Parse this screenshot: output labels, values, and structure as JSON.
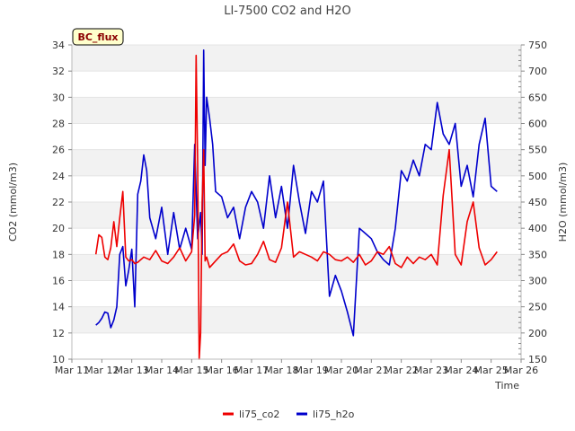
{
  "chart_data": {
    "type": "line",
    "title": "LI-7500 CO2 and H2O",
    "badge": "BC_flux",
    "xlabel": "Time",
    "ylabel": "CO2 (mmol/m3)",
    "ylabel_right": "H2O (mmol/m3)",
    "x_ticks": [
      "Mar 11",
      "Mar 12",
      "Mar 13",
      "Mar 14",
      "Mar 15",
      "Mar 16",
      "Mar 17",
      "Mar 18",
      "Mar 19",
      "Mar 20",
      "Mar 21",
      "Mar 22",
      "Mar 23",
      "Mar 24",
      "Mar 25",
      "Mar 26"
    ],
    "xlim": [
      11,
      26
    ],
    "ylim": [
      10,
      34
    ],
    "ylim_right": [
      150,
      750
    ],
    "y_ticks": [
      10,
      12,
      14,
      16,
      18,
      20,
      22,
      24,
      26,
      28,
      30,
      32,
      34
    ],
    "y_ticks_right": [
      150,
      200,
      250,
      300,
      350,
      400,
      450,
      500,
      550,
      600,
      650,
      700,
      750
    ],
    "grid": "horizontal alternating bands",
    "legend_position": "bottom",
    "colors": {
      "li75_co2": "#ee0000",
      "li75_h2o": "#0000cc",
      "band": "#f2f2f2",
      "badge_bg": "#ffffcc"
    },
    "series": [
      {
        "name": "li75_co2",
        "axis": "left",
        "x": [
          11.8,
          11.9,
          12.0,
          12.1,
          12.2,
          12.3,
          12.4,
          12.5,
          12.6,
          12.7,
          12.8,
          12.9,
          13.0,
          13.1,
          13.2,
          13.4,
          13.6,
          13.8,
          14.0,
          14.2,
          14.4,
          14.6,
          14.8,
          15.0,
          15.1,
          15.15,
          15.2,
          15.25,
          15.3,
          15.35,
          15.4,
          15.45,
          15.5,
          15.6,
          15.8,
          16.0,
          16.2,
          16.4,
          16.6,
          16.8,
          17.0,
          17.2,
          17.4,
          17.6,
          17.8,
          18.0,
          18.2,
          18.4,
          18.6,
          18.8,
          19.0,
          19.2,
          19.4,
          19.6,
          19.8,
          20.0,
          20.2,
          20.4,
          20.6,
          20.8,
          21.0,
          21.2,
          21.4,
          21.6,
          21.8,
          22.0,
          22.2,
          22.4,
          22.6,
          22.8,
          23.0,
          23.2,
          23.4,
          23.6,
          23.8,
          24.0,
          24.2,
          24.4,
          24.6,
          24.8,
          25.0,
          25.2
        ],
        "values": [
          18.0,
          19.5,
          19.3,
          17.8,
          17.6,
          18.5,
          20.5,
          18.6,
          20.8,
          22.8,
          17.8,
          17.5,
          17.6,
          17.3,
          17.4,
          17.8,
          17.6,
          18.3,
          17.5,
          17.3,
          17.8,
          18.5,
          17.5,
          18.2,
          21.0,
          33.2,
          25.0,
          10.0,
          12.0,
          22.0,
          26.0,
          17.5,
          17.8,
          17.0,
          17.5,
          18.0,
          18.2,
          18.8,
          17.5,
          17.2,
          17.3,
          18.0,
          19.0,
          17.6,
          17.4,
          18.5,
          22.0,
          17.8,
          18.2,
          18.0,
          17.8,
          17.5,
          18.2,
          18.0,
          17.6,
          17.5,
          17.8,
          17.4,
          18.0,
          17.2,
          17.5,
          18.2,
          18.0,
          18.6,
          17.3,
          17.0,
          17.8,
          17.3,
          17.8,
          17.6,
          18.0,
          17.2,
          22.5,
          26.0,
          18.0,
          17.2,
          20.5,
          22.0,
          18.5,
          17.2,
          17.6,
          18.2
        ]
      },
      {
        "name": "li75_h2o",
        "axis": "right",
        "x": [
          11.8,
          11.9,
          12.0,
          12.1,
          12.2,
          12.3,
          12.4,
          12.5,
          12.6,
          12.7,
          12.8,
          12.9,
          13.0,
          13.1,
          13.2,
          13.3,
          13.4,
          13.5,
          13.6,
          13.8,
          14.0,
          14.2,
          14.4,
          14.6,
          14.8,
          15.0,
          15.1,
          15.2,
          15.3,
          15.35,
          15.4,
          15.45,
          15.5,
          15.6,
          15.7,
          15.8,
          16.0,
          16.2,
          16.4,
          16.6,
          16.8,
          17.0,
          17.2,
          17.4,
          17.6,
          17.8,
          18.0,
          18.2,
          18.4,
          18.6,
          18.8,
          19.0,
          19.2,
          19.4,
          19.6,
          19.8,
          20.0,
          20.2,
          20.4,
          20.6,
          20.8,
          21.0,
          21.2,
          21.4,
          21.6,
          21.8,
          22.0,
          22.2,
          22.4,
          22.6,
          22.8,
          23.0,
          23.2,
          23.4,
          23.6,
          23.8,
          24.0,
          24.2,
          24.4,
          24.6,
          24.8,
          25.0,
          25.2
        ],
        "values": [
          215,
          220,
          228,
          240,
          238,
          210,
          225,
          250,
          350,
          365,
          290,
          320,
          360,
          250,
          465,
          490,
          540,
          510,
          420,
          380,
          440,
          350,
          430,
          360,
          400,
          360,
          560,
          380,
          430,
          350,
          740,
          520,
          650,
          610,
          560,
          470,
          460,
          420,
          440,
          380,
          440,
          470,
          450,
          400,
          500,
          420,
          480,
          400,
          520,
          450,
          390,
          470,
          450,
          490,
          270,
          310,
          280,
          240,
          195,
          400,
          390,
          380,
          355,
          340,
          330,
          400,
          510,
          490,
          530,
          500,
          560,
          550,
          640,
          580,
          560,
          600,
          480,
          520,
          460,
          560,
          610,
          480,
          470
        ]
      }
    ]
  }
}
